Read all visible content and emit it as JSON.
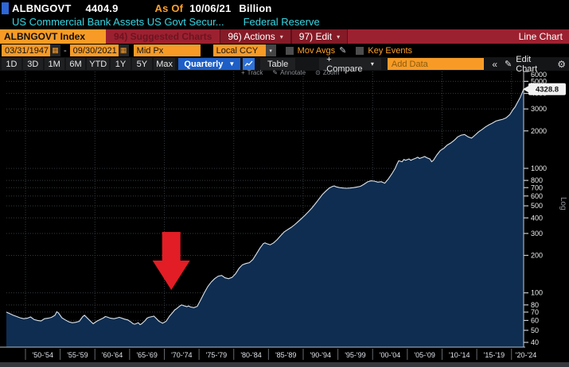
{
  "header": {
    "ticker": "ALBNGOVT",
    "last_value": "4404.9",
    "as_of_label": "As Of",
    "as_of_date": "10/06/21",
    "unit": "Billion",
    "description": "US Commercial Bank Assets US Govt Secur...",
    "source": "Federal Reserve"
  },
  "menu_bar": {
    "security_label": "ALBNGOVT Index",
    "suggested_charts_label": "94) Suggested Charts",
    "actions_label": "96) Actions",
    "edit_label": "97) Edit",
    "chart_type_label": "Line Chart"
  },
  "settings_bar": {
    "start_date": "03/31/1947",
    "separator": "-",
    "end_date": "09/30/2021",
    "price_field": "Mid Px",
    "currency": "Local CCY",
    "mov_avgs_label": "Mov Avgs",
    "key_events_label": "Key Events"
  },
  "toolbar": {
    "periods": [
      "1D",
      "3D",
      "1M",
      "6M",
      "YTD",
      "1Y",
      "5Y",
      "Max"
    ],
    "frequency": "Quarterly",
    "table_label": "Table",
    "compare_label": "+ Compare",
    "add_data_placeholder": "Add Data",
    "collapse_label": "«",
    "edit_chart_label": "Edit Chart"
  },
  "chart_tools": {
    "track": "Track",
    "annotate": "Annotate",
    "zoom": "Zoom"
  },
  "colors": {
    "amber_box": "#f79b26",
    "amber_text": "#ffa028",
    "cyan_text": "#35d7e4",
    "red_bar": "#9c2130",
    "blue_accent": "#1d5ec7",
    "chart_fill": "#0f2d50",
    "chart_line": "#dbe4ee",
    "grid": "#33393f",
    "arrow_red": "#e21d25"
  },
  "chart_data": {
    "type": "area",
    "title": "ALBNGOVT Index - US Commercial Bank Assets US Govt Securities (Billion, Log scale)",
    "scale": "log",
    "scale_label": "Log",
    "ylim": [
      40,
      6000
    ],
    "y_ticks": [
      6000,
      5000,
      4000,
      3000,
      2000,
      1000,
      800,
      700,
      600,
      500,
      400,
      300,
      200,
      100,
      80,
      70,
      60,
      50,
      40
    ],
    "x_range": [
      1947.25,
      2021.75
    ],
    "x_tick_years": [
      1950,
      1955,
      1960,
      1965,
      1970,
      1975,
      1980,
      1985,
      1990,
      1995,
      2000,
      2005,
      2010,
      2015,
      2020
    ],
    "x_labels": [
      "'50-'54",
      "'55-'59",
      "'60-'64",
      "'65-'69",
      "'70-'74",
      "'75-'79",
      "'80-'84",
      "'85-'89",
      "'90-'94",
      "'95-'99",
      "'00-'04",
      "'05-'09",
      "'10-'14",
      "'15-'19",
      "'20-'24"
    ],
    "grid_years": [
      1950,
      1960,
      1970,
      1980,
      1990,
      2000,
      2010,
      2020
    ],
    "last_price_label": "4328.8",
    "last_price_value": 4328.8,
    "annotation": {
      "type": "arrow-down",
      "x_year": 1971,
      "points_at_value": 65
    },
    "x": [
      1947.25,
      1947.75,
      1948.25,
      1948.75,
      1949.25,
      1949.75,
      1950.25,
      1950.75,
      1951.25,
      1951.75,
      1952.25,
      1952.75,
      1953.25,
      1953.75,
      1954.25,
      1954.5,
      1954.75,
      1955.25,
      1955.75,
      1956.25,
      1956.75,
      1957.25,
      1957.75,
      1958.25,
      1958.5,
      1958.75,
      1959.25,
      1959.75,
      1960.25,
      1960.75,
      1961.25,
      1961.5,
      1961.75,
      1962.25,
      1962.75,
      1963.25,
      1963.5,
      1963.75,
      1964.25,
      1964.75,
      1965.25,
      1965.5,
      1965.75,
      1966.25,
      1966.5,
      1966.75,
      1967.25,
      1967.5,
      1967.75,
      1968.25,
      1968.5,
      1968.75,
      1969.25,
      1969.5,
      1969.75,
      1970.25,
      1970.5,
      1970.75,
      1971.25,
      1971.5,
      1971.75,
      1972.25,
      1972.5,
      1972.75,
      1973.25,
      1973.5,
      1973.75,
      1974.25,
      1974.75,
      1975.25,
      1975.75,
      1976.25,
      1976.75,
      1977.25,
      1977.75,
      1978.25,
      1978.75,
      1979.25,
      1979.75,
      1980.25,
      1980.75,
      1981.25,
      1981.75,
      1982.25,
      1982.75,
      1983.25,
      1983.75,
      1984.25,
      1984.5,
      1984.75,
      1985.25,
      1985.75,
      1986.25,
      1986.75,
      1987.25,
      1987.75,
      1988.25,
      1988.75,
      1989.25,
      1989.75,
      1990.25,
      1990.75,
      1991.25,
      1991.75,
      1992.25,
      1992.75,
      1993.25,
      1993.75,
      1994.25,
      1994.5,
      1994.75,
      1995.25,
      1995.75,
      1996.25,
      1996.75,
      1997.25,
      1997.75,
      1998.25,
      1998.75,
      1999.25,
      1999.75,
      2000.25,
      2000.75,
      2001.25,
      2001.75,
      2002.25,
      2002.75,
      2003.25,
      2003.5,
      2003.75,
      2004.25,
      2004.5,
      2004.75,
      2005.25,
      2005.5,
      2005.75,
      2006.25,
      2006.5,
      2006.75,
      2007.25,
      2007.5,
      2007.75,
      2008.25,
      2008.5,
      2008.75,
      2009.25,
      2009.75,
      2010.25,
      2010.75,
      2011.25,
      2011.75,
      2012.25,
      2012.75,
      2013.25,
      2013.5,
      2013.75,
      2014.25,
      2014.75,
      2015.25,
      2015.75,
      2016.25,
      2016.75,
      2017.25,
      2017.75,
      2018.25,
      2018.75,
      2019.25,
      2019.75,
      2020.25,
      2020.5,
      2020.75,
      2021.25,
      2021.5,
      2021.75
    ],
    "values": [
      70,
      68,
      66,
      64.5,
      63,
      62,
      62.5,
      64,
      61,
      60,
      59.5,
      62,
      62.5,
      63.5,
      66,
      70.5,
      69,
      63,
      60.5,
      58.5,
      57.5,
      58,
      59,
      64.5,
      66,
      64,
      60,
      56.5,
      59,
      61,
      63,
      64.5,
      64,
      62.5,
      62,
      63,
      63.5,
      63,
      61.5,
      60.5,
      58,
      56.5,
      56,
      57.5,
      55.5,
      56.5,
      60,
      62.5,
      63.5,
      64.5,
      65,
      63,
      59,
      58,
      57,
      59,
      62,
      65,
      70,
      73,
      74.5,
      78.5,
      80,
      79,
      77.5,
      78.5,
      77,
      76,
      78,
      88,
      100,
      112,
      122,
      130,
      136,
      138,
      132,
      130,
      133,
      142,
      157,
      168,
      172,
      175,
      185,
      205,
      228,
      248,
      252,
      248,
      243,
      252,
      268,
      288,
      308,
      322,
      335,
      352,
      372,
      395,
      420,
      448,
      480,
      520,
      565,
      615,
      655,
      695,
      718,
      722,
      710,
      700,
      695,
      692,
      695,
      700,
      708,
      718,
      745,
      778,
      795,
      790,
      775,
      782,
      760,
      820,
      900,
      1000,
      1080,
      1150,
      1130,
      1180,
      1160,
      1190,
      1160,
      1180,
      1210,
      1230,
      1200,
      1230,
      1245,
      1220,
      1190,
      1130,
      1160,
      1280,
      1390,
      1450,
      1540,
      1600,
      1680,
      1790,
      1850,
      1870,
      1830,
      1790,
      1750,
      1850,
      1960,
      2050,
      2150,
      2240,
      2310,
      2400,
      2440,
      2480,
      2550,
      2700,
      2980,
      3100,
      3300,
      3700,
      4000,
      4328.8
    ]
  }
}
